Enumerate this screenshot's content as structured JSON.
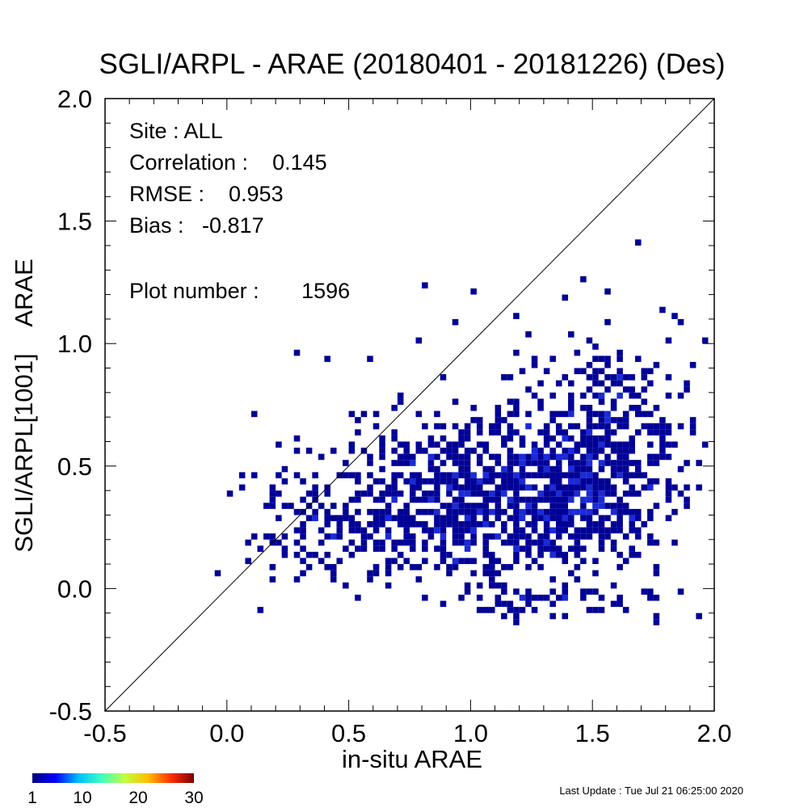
{
  "colors": {
    "cell_low": "#000096",
    "cell_high": "#1a2bd6",
    "axis": "#000000",
    "colorbar": [
      "#00007f",
      "#0000ff",
      "#00bfff",
      "#40ffbf",
      "#bfff40",
      "#ffbf00",
      "#ff3000",
      "#7f0000"
    ]
  },
  "chart_data": {
    "type": "heatmap",
    "title": "SGLI/ARPL - ARAE (20180401 - 20181226) (Des)",
    "xlabel": "in-situ ARAE",
    "ylabel": "SGLI/ARPL[1001]    ARAE",
    "xlim": [
      -0.5,
      2.0
    ],
    "ylim": [
      -0.5,
      2.0
    ],
    "xticks": [
      "-0.5",
      "0.0",
      "0.5",
      "1.0",
      "1.5",
      "2.0"
    ],
    "yticks": [
      "-0.5",
      "0.0",
      "0.5",
      "1.0",
      "1.5",
      "2.0"
    ],
    "reference_line": "1:1",
    "stats": {
      "site": "Site : ALL",
      "correlation": "Correlation :    0.145",
      "rmse": "RMSE :    0.953",
      "bias": "Bias :   -0.817",
      "plot_number": "Plot number :       1596"
    },
    "colorbar": {
      "min": 1,
      "max": 30,
      "labels": [
        "1",
        "10",
        "20",
        "30"
      ]
    },
    "bin_size": 0.025,
    "outliers": [
      {
        "x": -0.03,
        "y": 0.06
      },
      {
        "x": 0.05,
        "y": 0.46
      },
      {
        "x": 0.05,
        "y": 0.42
      },
      {
        "x": 0.11,
        "y": 0.72
      },
      {
        "x": 0.28,
        "y": 0.97
      },
      {
        "x": 0.82,
        "y": 1.24
      },
      {
        "x": 1.02,
        "y": 1.22
      },
      {
        "x": 1.47,
        "y": 1.26
      },
      {
        "x": 1.69,
        "y": 1.42
      },
      {
        "x": 1.56,
        "y": 1.22
      },
      {
        "x": 1.4,
        "y": 1.2
      },
      {
        "x": 1.78,
        "y": 1.15
      },
      {
        "x": 1.2,
        "y": 1.12
      },
      {
        "x": 0.94,
        "y": 1.09
      },
      {
        "x": 1.84,
        "y": 1.12
      },
      {
        "x": 0.78,
        "y": 1.0
      },
      {
        "x": 0.6,
        "y": 0.95
      },
      {
        "x": 0.4,
        "y": 0.95
      },
      {
        "x": 1.96,
        "y": 1.0
      },
      {
        "x": 0.2,
        "y": 0.6
      },
      {
        "x": 0.09,
        "y": 0.1
      },
      {
        "x": 0.15,
        "y": -0.1
      },
      {
        "x": 1.93,
        "y": -0.12
      },
      {
        "x": 1.75,
        "y": -0.14
      }
    ],
    "density_clusters": [
      {
        "cx": 1.45,
        "cy": 0.4,
        "sx": 0.3,
        "sy": 0.22,
        "n": 520
      },
      {
        "cx": 1.05,
        "cy": 0.38,
        "sx": 0.32,
        "sy": 0.24,
        "n": 420
      },
      {
        "cx": 0.7,
        "cy": 0.35,
        "sx": 0.28,
        "sy": 0.25,
        "n": 220
      },
      {
        "cx": 1.55,
        "cy": 0.75,
        "sx": 0.28,
        "sy": 0.18,
        "n": 180
      },
      {
        "cx": 0.35,
        "cy": 0.3,
        "sx": 0.18,
        "sy": 0.2,
        "n": 90
      },
      {
        "cx": 1.3,
        "cy": -0.05,
        "sx": 0.35,
        "sy": 0.06,
        "n": 70
      }
    ]
  },
  "footer": {
    "last_update": "Last Update : Tue Jul 21 06:25:00 2020"
  }
}
